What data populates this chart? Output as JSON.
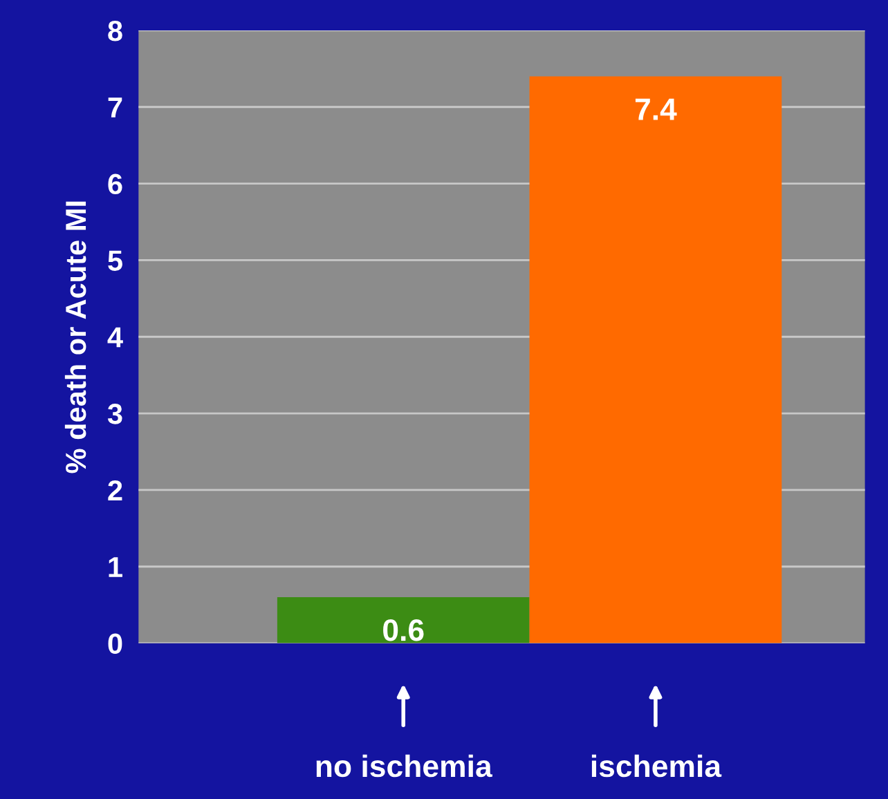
{
  "chart_data": {
    "type": "bar",
    "ylabel": "% death or Acute MI",
    "categories": [
      "no ischemia",
      "ischemia"
    ],
    "values": [
      0.6,
      7.4
    ],
    "colors": [
      "#3c8c14",
      "#ff6a00"
    ],
    "ylim": [
      0,
      8
    ],
    "yticks": [
      0,
      1,
      2,
      3,
      4,
      5,
      6,
      7,
      8
    ],
    "grid": "y",
    "data_labels": true
  }
}
